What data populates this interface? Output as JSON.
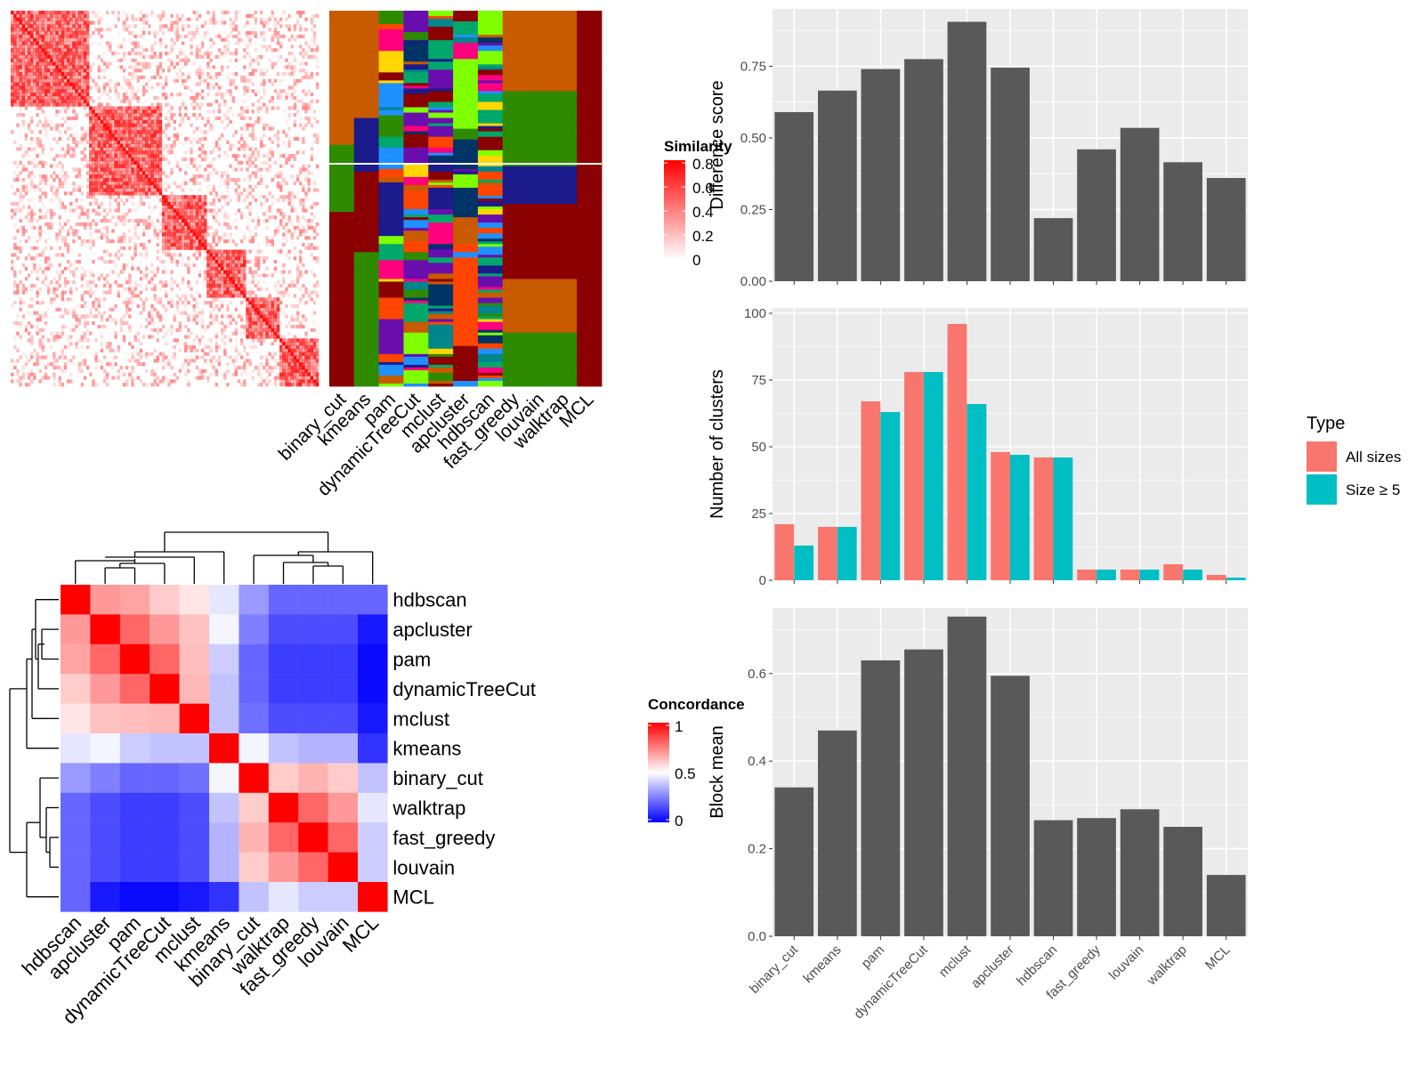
{
  "panels": {
    "similarity_heatmap": {
      "legend_title": "Similarity",
      "legend_ticks": [
        "0.8",
        "0.6",
        "0.4",
        "0.2",
        "0"
      ]
    },
    "membership_heatmap": {
      "methods": [
        "binary_cut",
        "kmeans",
        "pam",
        "dynamicTreeCut",
        "mclust",
        "apcluster",
        "hdbscan",
        "fast_greedy",
        "louvain",
        "walktrap",
        "MCL"
      ]
    },
    "concordance_heatmap": {
      "legend_title": "Concordance",
      "legend_ticks": [
        "1",
        "0.5",
        "0"
      ]
    },
    "legend_type": {
      "title": "Type",
      "items": [
        "All sizes",
        "Size ≥ 5"
      ],
      "colors": [
        "#F8766D",
        "#00BFC4"
      ]
    }
  },
  "chart_data": [
    {
      "type": "heatmap",
      "title": "",
      "rows": [
        "hdbscan",
        "apcluster",
        "pam",
        "dynamicTreeCut",
        "mclust",
        "kmeans",
        "binary_cut",
        "walktrap",
        "fast_greedy",
        "louvain",
        "MCL"
      ],
      "cols": [
        "hdbscan",
        "apcluster",
        "pam",
        "dynamicTreeCut",
        "mclust",
        "kmeans",
        "binary_cut",
        "walktrap",
        "fast_greedy",
        "louvain",
        "MCL"
      ],
      "values": [
        [
          1.0,
          0.7,
          0.68,
          0.6,
          0.55,
          0.45,
          0.3,
          0.2,
          0.2,
          0.2,
          0.2
        ],
        [
          0.7,
          1.0,
          0.8,
          0.7,
          0.62,
          0.48,
          0.25,
          0.15,
          0.15,
          0.15,
          0.05
        ],
        [
          0.68,
          0.8,
          1.0,
          0.8,
          0.63,
          0.4,
          0.2,
          0.12,
          0.12,
          0.12,
          0.02
        ],
        [
          0.6,
          0.7,
          0.8,
          1.0,
          0.64,
          0.38,
          0.2,
          0.12,
          0.12,
          0.12,
          0.02
        ],
        [
          0.55,
          0.62,
          0.63,
          0.64,
          1.0,
          0.38,
          0.22,
          0.15,
          0.15,
          0.15,
          0.05
        ],
        [
          0.45,
          0.48,
          0.4,
          0.38,
          0.38,
          1.0,
          0.48,
          0.38,
          0.35,
          0.35,
          0.1
        ],
        [
          0.3,
          0.25,
          0.2,
          0.2,
          0.22,
          0.48,
          1.0,
          0.6,
          0.65,
          0.6,
          0.38
        ],
        [
          0.2,
          0.15,
          0.12,
          0.12,
          0.15,
          0.38,
          0.6,
          1.0,
          0.8,
          0.7,
          0.45
        ],
        [
          0.2,
          0.15,
          0.12,
          0.12,
          0.15,
          0.35,
          0.65,
          0.8,
          1.0,
          0.8,
          0.4
        ],
        [
          0.2,
          0.15,
          0.12,
          0.12,
          0.15,
          0.35,
          0.6,
          0.7,
          0.8,
          1.0,
          0.4
        ],
        [
          0.2,
          0.05,
          0.02,
          0.02,
          0.05,
          0.1,
          0.38,
          0.45,
          0.4,
          0.4,
          1.0
        ]
      ],
      "legend_range": [
        0,
        1
      ]
    },
    {
      "type": "bar",
      "categories": [
        "binary_cut",
        "kmeans",
        "pam",
        "dynamicTreeCut",
        "mclust",
        "apcluster",
        "hdbscan",
        "fast_greedy",
        "louvain",
        "walktrap",
        "MCL"
      ],
      "values": [
        0.59,
        0.665,
        0.74,
        0.775,
        0.905,
        0.745,
        0.22,
        0.46,
        0.535,
        0.415,
        0.36
      ],
      "ylabel": "Difference score",
      "ylim": [
        0,
        0.95
      ],
      "yticks": [
        "0.00",
        "0.25",
        "0.50",
        "0.75"
      ],
      "grid": true
    },
    {
      "type": "bar",
      "categories": [
        "binary_cut",
        "kmeans",
        "pam",
        "dynamicTreeCut",
        "mclust",
        "apcluster",
        "hdbscan",
        "fast_greedy",
        "louvain",
        "walktrap",
        "MCL"
      ],
      "series": [
        {
          "name": "All sizes",
          "values": [
            21,
            20,
            67,
            78,
            96,
            48,
            46,
            4,
            4,
            6,
            2
          ]
        },
        {
          "name": "Size ≥ 5",
          "values": [
            13,
            20,
            63,
            78,
            66,
            47,
            46,
            4,
            4,
            4,
            1
          ]
        }
      ],
      "ylabel": "Number of clusters",
      "ylim": [
        0,
        102
      ],
      "yticks": [
        "0",
        "25",
        "50",
        "75",
        "100"
      ],
      "legend_title": "Type",
      "legend_position": "right",
      "grid": true
    },
    {
      "type": "bar",
      "categories": [
        "binary_cut",
        "kmeans",
        "pam",
        "dynamicTreeCut",
        "mclust",
        "apcluster",
        "hdbscan",
        "fast_greedy",
        "louvain",
        "walktrap",
        "MCL"
      ],
      "values": [
        0.34,
        0.47,
        0.63,
        0.655,
        0.73,
        0.595,
        0.265,
        0.27,
        0.29,
        0.25,
        0.14
      ],
      "ylabel": "Block mean",
      "ylim": [
        0,
        0.75
      ],
      "yticks": [
        "0.0",
        "0.2",
        "0.4",
        "0.6"
      ],
      "grid": true
    }
  ]
}
